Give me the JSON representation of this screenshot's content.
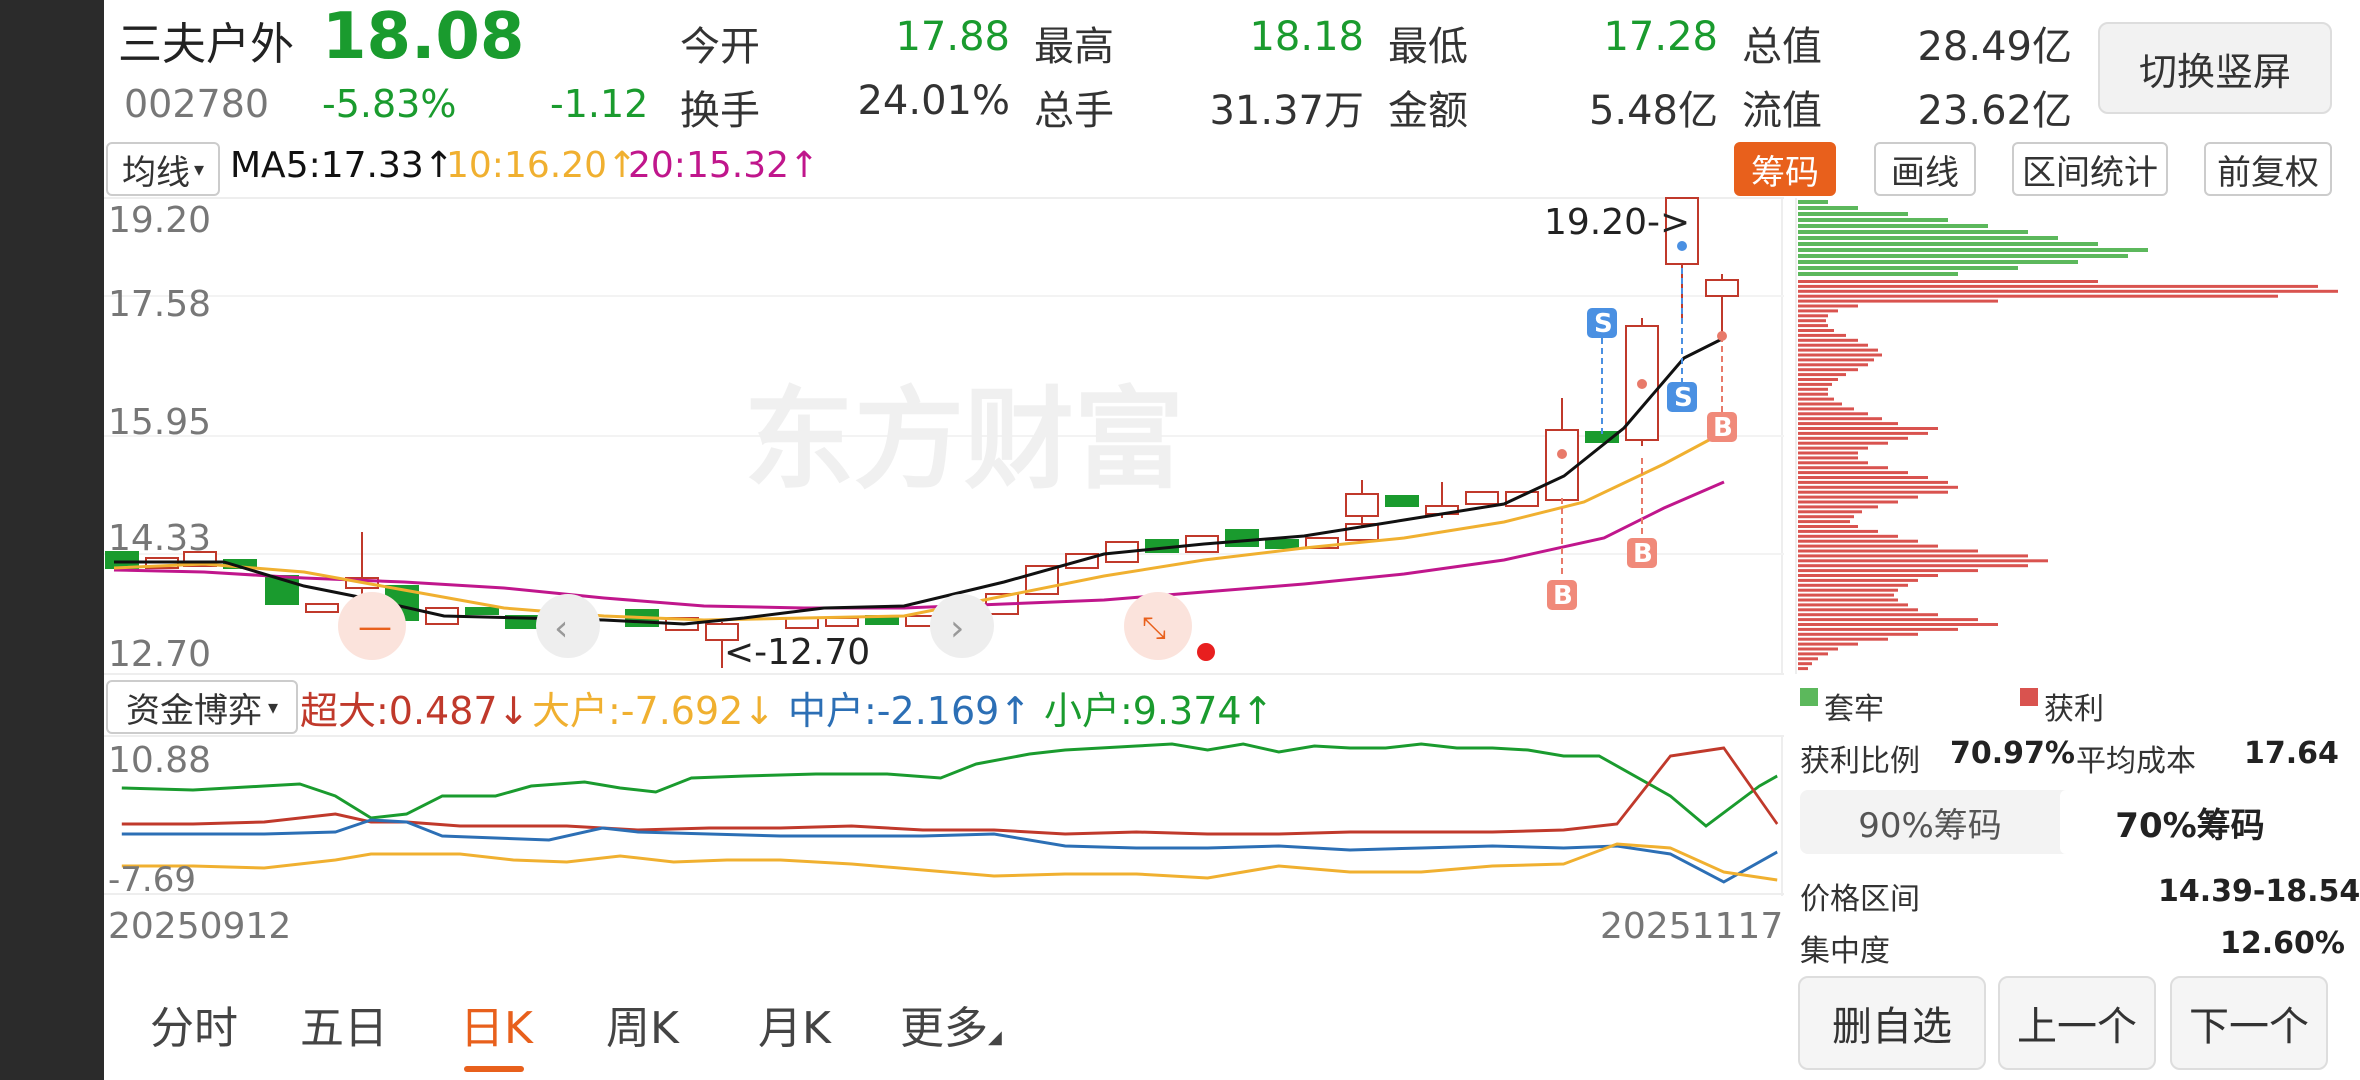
{
  "header": {
    "stock_name": "三夫户外",
    "price": "18.08",
    "code": "002780",
    "change_pct": "-5.83%",
    "change_abs": "-1.12",
    "switch_label": "切换竖屏",
    "stats": [
      {
        "label": "今开",
        "value": "17.88"
      },
      {
        "label": "最高",
        "value": "18.18"
      },
      {
        "label": "最低",
        "value": "17.28"
      },
      {
        "label": "总值",
        "value": "28.49亿"
      },
      {
        "label": "换手",
        "value": "24.01%"
      },
      {
        "label": "总手",
        "value": "31.37万"
      },
      {
        "label": "金额",
        "value": "5.48亿"
      },
      {
        "label": "流值",
        "value": "23.62亿"
      }
    ]
  },
  "toolbar": {
    "ma_select": "均线",
    "ma5": "MA5:17.33↑",
    "ma10": "10:16.20↑",
    "ma20": "20:15.32↑",
    "buttons": [
      "筹码",
      "画线",
      "区间统计",
      "前复权"
    ],
    "colors": {
      "ma5": "#111111",
      "ma10": "#f0b030",
      "ma20": "#c0168c",
      "up": "#c0392b",
      "down": "#1a9b2e"
    }
  },
  "kline": {
    "y_labels": [
      "19.20",
      "17.58",
      "15.95",
      "14.33",
      "12.70"
    ],
    "high_marker": "19.20->",
    "low_marker": "<-12.70",
    "watermark": "东方财富",
    "date_start": "20250912",
    "date_end": "20251117"
  },
  "fund": {
    "select": "资金博弈",
    "super": "超大:0.487↓",
    "large": "大户:-7.692↓",
    "mid": "中户:-2.169↑",
    "small": "小户:9.374↑",
    "y_top": "10.88",
    "y_bottom": "-7.69"
  },
  "chips": {
    "legend_trapped": "套牢",
    "legend_profit": "获利",
    "profit_ratio_label": "获利比例",
    "profit_ratio": "70.97%",
    "avg_cost_label": "平均成本",
    "avg_cost": "17.64",
    "seg_90": "90%筹码",
    "seg_70": "70%筹码",
    "range_label": "价格区间",
    "range": "14.39-18.54",
    "conc_label": "集中度",
    "conc": "12.60%"
  },
  "tabs": [
    "分时",
    "五日",
    "日K",
    "周K",
    "月K",
    "更多"
  ],
  "bottom_buttons": [
    "删自选",
    "上一个",
    "下一个"
  ]
}
